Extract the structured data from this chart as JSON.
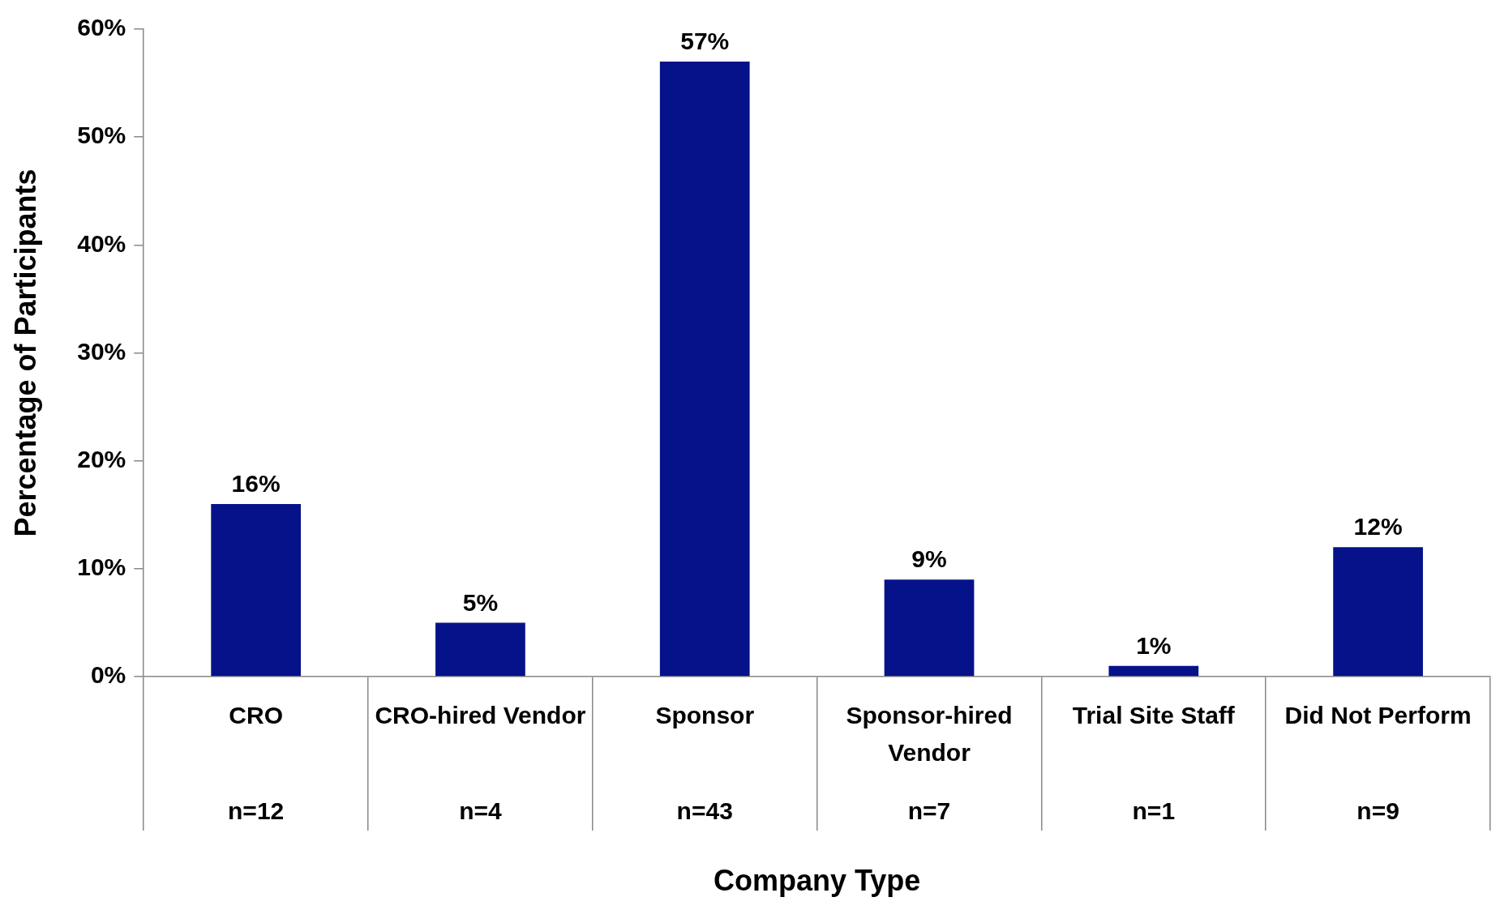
{
  "chart_data": {
    "type": "bar",
    "xlabel": "Company Type",
    "ylabel": "Percentage of Participants",
    "categories": [
      "CRO",
      "CRO-hired Vendor",
      "Sponsor",
      "Sponsor-hired Vendor",
      "Trial Site Staff",
      "Did Not Perform"
    ],
    "values": [
      16,
      5,
      57,
      9,
      1,
      12
    ],
    "color": "#061289",
    "value_labels": [
      "16%",
      "5%",
      "57%",
      "9%",
      "1%",
      "12%"
    ],
    "ylim": [
      0,
      60
    ],
    "yticks": [
      {
        "value": 0,
        "label": "0%"
      },
      {
        "value": 10,
        "label": "10%"
      },
      {
        "value": 20,
        "label": "20%"
      },
      {
        "value": 30,
        "label": "30%"
      },
      {
        "value": 40,
        "label": "40%"
      },
      {
        "value": 50,
        "label": "50%"
      },
      {
        "value": 60,
        "label": "60%"
      }
    ],
    "grid": false,
    "legend": false,
    "annotations": [
      "n=12",
      "n=4",
      "n=43",
      "n=7",
      "n=1",
      "n=9"
    ]
  }
}
